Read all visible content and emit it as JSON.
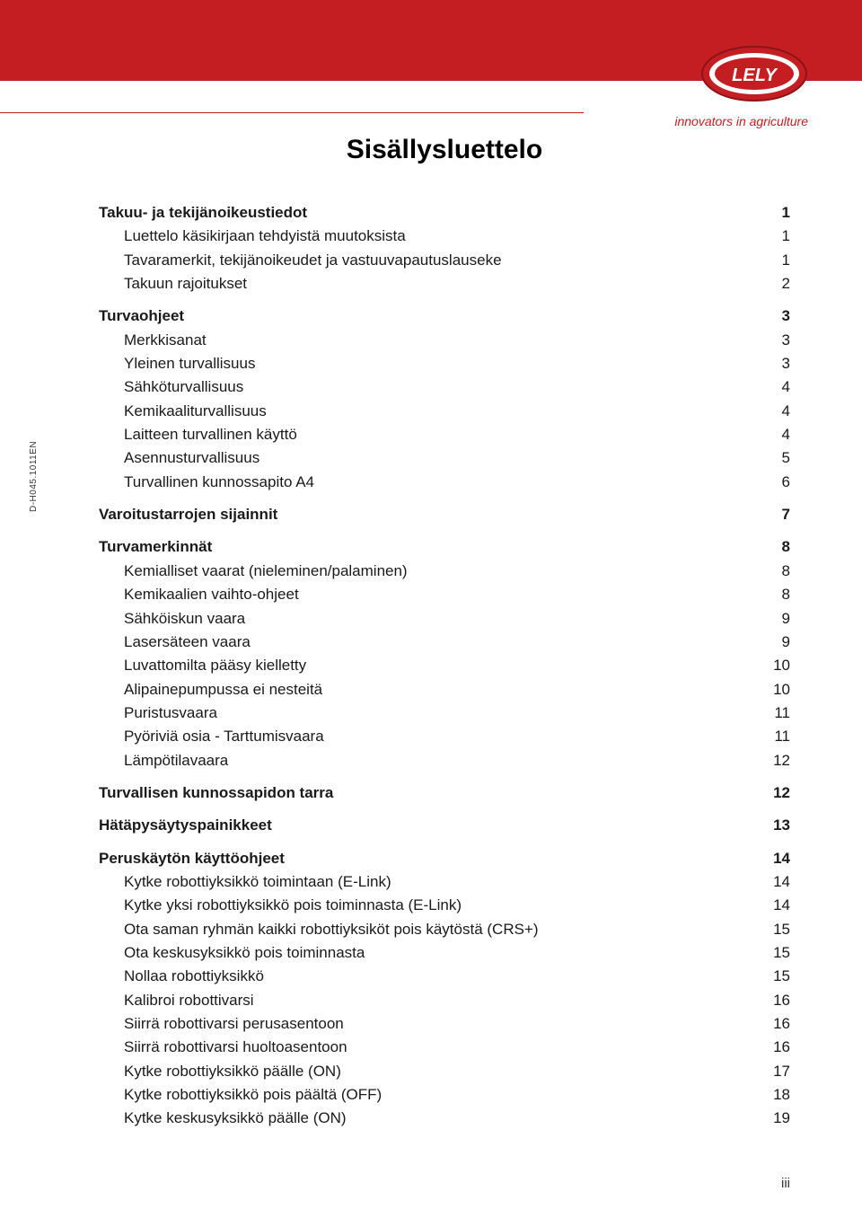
{
  "header": {
    "band_color": "#c41e23",
    "tagline": "innovators in agriculture",
    "tagline_color": "#c41e23",
    "logo_colors": {
      "outer": "#c41e23",
      "mid": "#ffffff",
      "text_bg": "#c41e23",
      "text": "#ffffff"
    },
    "logo_text": "LELY"
  },
  "sidebar": {
    "doc_code": "D-H045.1011EN"
  },
  "title": "Sisällysluettelo",
  "toc": [
    {
      "label": "Takuu- ja tekijänoikeustiedot",
      "page": "1",
      "level": 0
    },
    {
      "label": "Luettelo käsikirjaan tehdyistä muutoksista",
      "page": "1",
      "level": 1
    },
    {
      "label": "Tavaramerkit, tekijänoikeudet ja vastuuvapautuslauseke",
      "page": "1",
      "level": 1
    },
    {
      "label": "Takuun rajoitukset",
      "page": "2",
      "level": 1
    },
    {
      "label": "Turvaohjeet",
      "page": "3",
      "level": 0
    },
    {
      "label": "Merkkisanat",
      "page": "3",
      "level": 1
    },
    {
      "label": "Yleinen turvallisuus",
      "page": "3",
      "level": 1
    },
    {
      "label": "Sähköturvallisuus",
      "page": "4",
      "level": 1
    },
    {
      "label": "Kemikaaliturvallisuus",
      "page": "4",
      "level": 1
    },
    {
      "label": "Laitteen turvallinen käyttö",
      "page": "4",
      "level": 1
    },
    {
      "label": "Asennusturvallisuus",
      "page": "5",
      "level": 1
    },
    {
      "label": "Turvallinen kunnossapito A4",
      "page": "6",
      "level": 1
    },
    {
      "label": "Varoitustarrojen sijainnit",
      "page": "7",
      "level": 0
    },
    {
      "label": "Turvamerkinnät",
      "page": "8",
      "level": 0
    },
    {
      "label": "Kemialliset vaarat (nieleminen/palaminen)",
      "page": "8",
      "level": 1
    },
    {
      "label": "Kemikaalien vaihto-ohjeet",
      "page": "8",
      "level": 1
    },
    {
      "label": "Sähköiskun vaara",
      "page": "9",
      "level": 1
    },
    {
      "label": "Lasersäteen vaara",
      "page": "9",
      "level": 1
    },
    {
      "label": "Luvattomilta pääsy kielletty",
      "page": "10",
      "level": 1
    },
    {
      "label": "Alipainepumpussa ei nesteitä",
      "page": "10",
      "level": 1
    },
    {
      "label": "Puristusvaara",
      "page": "11",
      "level": 1
    },
    {
      "label": "Pyöriviä osia - Tarttumisvaara",
      "page": "11",
      "level": 1
    },
    {
      "label": "Lämpötilavaara",
      "page": "12",
      "level": 1
    },
    {
      "label": "Turvallisen kunnossapidon tarra",
      "page": "12",
      "level": 0
    },
    {
      "label": "Hätäpysäytyspainikkeet",
      "page": "13",
      "level": 0
    },
    {
      "label": "Peruskäytön käyttöohjeet",
      "page": "14",
      "level": 0
    },
    {
      "label": "Kytke robottiyksikkö toimintaan (E-Link)",
      "page": "14",
      "level": 1
    },
    {
      "label": "Kytke yksi robottiyksikkö pois toiminnasta (E-Link)",
      "page": "14",
      "level": 1
    },
    {
      "label": "Ota saman ryhmän kaikki robottiyksiköt pois käytöstä (CRS+)",
      "page": "15",
      "level": 1
    },
    {
      "label": "Ota keskusyksikkö pois toiminnasta",
      "page": "15",
      "level": 1
    },
    {
      "label": "Nollaa robottiyksikkö",
      "page": "15",
      "level": 1
    },
    {
      "label": "Kalibroi robottivarsi",
      "page": "16",
      "level": 1
    },
    {
      "label": "Siirrä robottivarsi perusasentoon",
      "page": "16",
      "level": 1
    },
    {
      "label": "Siirrä robottivarsi huoltoasentoon",
      "page": "16",
      "level": 1
    },
    {
      "label": "Kytke robottiyksikkö päälle (ON)",
      "page": "17",
      "level": 1
    },
    {
      "label": "Kytke robottiyksikkö pois päältä (OFF)",
      "page": "18",
      "level": 1
    },
    {
      "label": "Kytke keskusyksikkö päälle (ON)",
      "page": "19",
      "level": 1
    }
  ],
  "footer": {
    "page_num": "iii"
  },
  "style": {
    "title_fontsize": 30,
    "row_fontsize": 17,
    "bold_weight": 700,
    "text_color": "#1a1a1a",
    "background": "#ffffff"
  }
}
